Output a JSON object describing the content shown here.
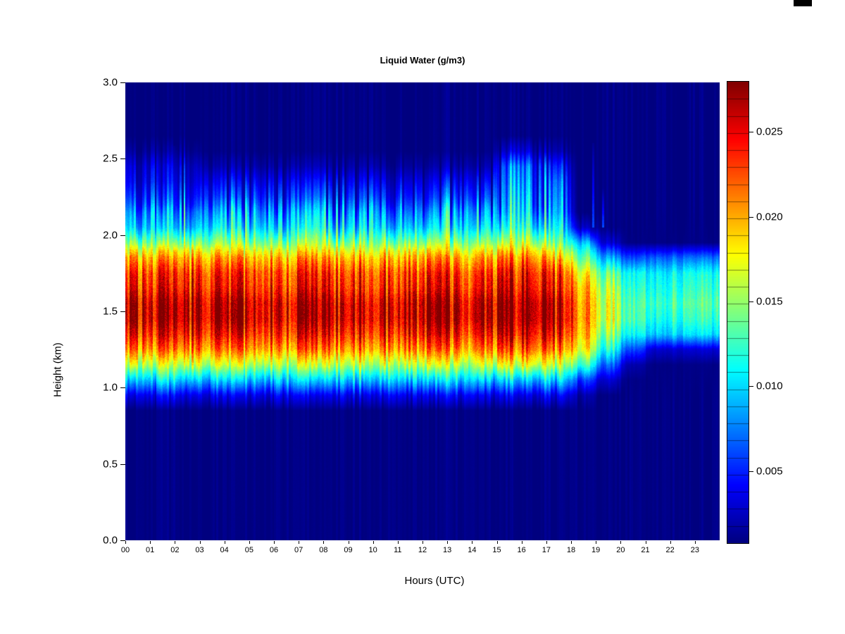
{
  "chart_data": {
    "type": "heatmap",
    "title": "Liquid Water (g/m3)",
    "units": "g/m3",
    "xlabel": "Hours (UTC)",
    "ylabel": "Height (km)",
    "x_range_hours": [
      0,
      24
    ],
    "x_tick_hours": [
      0,
      1,
      2,
      3,
      4,
      5,
      6,
      7,
      8,
      9,
      10,
      11,
      12,
      13,
      14,
      15,
      16,
      17,
      18,
      19,
      20,
      21,
      22,
      23
    ],
    "x_tick_labels": [
      "00",
      "01",
      "02",
      "03",
      "04",
      "05",
      "06",
      "07",
      "08",
      "09",
      "10",
      "11",
      "12",
      "13",
      "14",
      "15",
      "16",
      "17",
      "18",
      "19",
      "20",
      "21",
      "22",
      "23"
    ],
    "y_range_km": [
      0,
      3
    ],
    "y_tick_km": [
      0,
      0.5,
      1,
      1.5,
      2,
      2.5,
      3
    ],
    "y_tick_labels": [
      "0.0",
      "0.5",
      "1.0",
      "1.5",
      "2.0",
      "2.5",
      "3.0"
    ],
    "color_scale": {
      "colormap": "jet",
      "vmin": 0.0008,
      "vmax": 0.028,
      "ticks_gm3": [
        0.005,
        0.01,
        0.015,
        0.02,
        0.025
      ],
      "tick_labels": [
        "0.005",
        "0.010",
        "0.015",
        "0.020",
        "0.025"
      ],
      "segments": 27
    },
    "height_levels_km": [
      0.05,
      0.15,
      0.25,
      0.35,
      0.45,
      0.55,
      0.65,
      0.75,
      0.85,
      0.95,
      1.05,
      1.15,
      1.25,
      1.35,
      1.45,
      1.55,
      1.65,
      1.75,
      1.85,
      1.95,
      2.05,
      2.15,
      2.25,
      2.35,
      2.45,
      2.55,
      2.65,
      2.75,
      2.85,
      2.95
    ],
    "hour_profile_map": [
      "active_early",
      "active_early",
      "active_early",
      "active_mid",
      "active_mid",
      "active_mid",
      "active_mid",
      "active_mid",
      "active_mid",
      "active_mid",
      "active_mid",
      "active_mid",
      "active_mid",
      "active_mid",
      "active_mid",
      "active_deep",
      "active_deep",
      "hour17",
      "hour18",
      "hour19",
      "hour20",
      "dissipating",
      "dissipating",
      "dissipating"
    ],
    "profiles_gm3": {
      "active_early": [
        0.001,
        0.001,
        0.001,
        0.001,
        0.001,
        0.001,
        0.001,
        0.001,
        0.001,
        0.004,
        0.01,
        0.016,
        0.021,
        0.024,
        0.026,
        0.026,
        0.024,
        0.023,
        0.02,
        0.015,
        0.011,
        0.01,
        0.007,
        0.005,
        0.004,
        0.002,
        0.001,
        0.001,
        0.001,
        0.001
      ],
      "active_mid": [
        0.001,
        0.001,
        0.001,
        0.001,
        0.001,
        0.001,
        0.001,
        0.001,
        0.001,
        0.004,
        0.01,
        0.016,
        0.021,
        0.024,
        0.026,
        0.026,
        0.024,
        0.023,
        0.02,
        0.015,
        0.011,
        0.009,
        0.006,
        0.004,
        0.002,
        0.001,
        0.001,
        0.001,
        0.001,
        0.001
      ],
      "active_deep": [
        0.001,
        0.001,
        0.001,
        0.001,
        0.001,
        0.001,
        0.001,
        0.001,
        0.001,
        0.004,
        0.01,
        0.017,
        0.022,
        0.025,
        0.027,
        0.027,
        0.025,
        0.024,
        0.021,
        0.016,
        0.012,
        0.01,
        0.009,
        0.008,
        0.007,
        0.003,
        0.001,
        0.001,
        0.001,
        0.001
      ],
      "hour17": [
        0.001,
        0.001,
        0.001,
        0.001,
        0.001,
        0.001,
        0.001,
        0.001,
        0.001,
        0.004,
        0.01,
        0.016,
        0.021,
        0.024,
        0.026,
        0.026,
        0.024,
        0.023,
        0.019,
        0.014,
        0.011,
        0.009,
        0.008,
        0.007,
        0.005,
        0.002,
        0.001,
        0.001,
        0.001,
        0.001
      ],
      "hour18": [
        0.001,
        0.001,
        0.001,
        0.001,
        0.001,
        0.001,
        0.001,
        0.001,
        0.001,
        0.002,
        0.006,
        0.013,
        0.018,
        0.02,
        0.021,
        0.021,
        0.02,
        0.018,
        0.014,
        0.01,
        0.003,
        0.001,
        0.001,
        0.001,
        0.001,
        0.001,
        0.001,
        0.001,
        0.001,
        0.001
      ],
      "hour19": [
        0.001,
        0.001,
        0.001,
        0.001,
        0.001,
        0.001,
        0.001,
        0.001,
        0.001,
        0.001,
        0.003,
        0.007,
        0.012,
        0.015,
        0.017,
        0.017,
        0.016,
        0.014,
        0.009,
        0.003,
        0.001,
        0.001,
        0.001,
        0.001,
        0.001,
        0.001,
        0.001,
        0.001,
        0.001,
        0.001
      ],
      "hour20": [
        0.001,
        0.001,
        0.001,
        0.001,
        0.001,
        0.001,
        0.001,
        0.001,
        0.001,
        0.001,
        0.001,
        0.002,
        0.006,
        0.011,
        0.013,
        0.013,
        0.012,
        0.011,
        0.006,
        0.001,
        0.001,
        0.001,
        0.001,
        0.001,
        0.001,
        0.001,
        0.001,
        0.001,
        0.001,
        0.001
      ],
      "dissipating": [
        0.001,
        0.001,
        0.001,
        0.001,
        0.001,
        0.001,
        0.001,
        0.001,
        0.001,
        0.001,
        0.001,
        0.001,
        0.003,
        0.01,
        0.012,
        0.013,
        0.012,
        0.011,
        0.007,
        0.001,
        0.001,
        0.001,
        0.001,
        0.001,
        0.001,
        0.001,
        0.001,
        0.001,
        0.001,
        0.001
      ]
    },
    "texture": {
      "seed": 42,
      "subcolumns": 288,
      "column_noise": 0.16,
      "top_jitter": [
        0.25,
        1.45
      ],
      "base_jitter": [
        0.55,
        1.3
      ],
      "speckle": 0.12,
      "spike_ranges_hours": [
        [
          0.0,
          2.8
        ],
        [
          14.8,
          16.9
        ],
        [
          18.8,
          19.4
        ]
      ],
      "spike_probability": 0.32,
      "spike_top_km": [
        2.25,
        2.72
      ]
    }
  }
}
